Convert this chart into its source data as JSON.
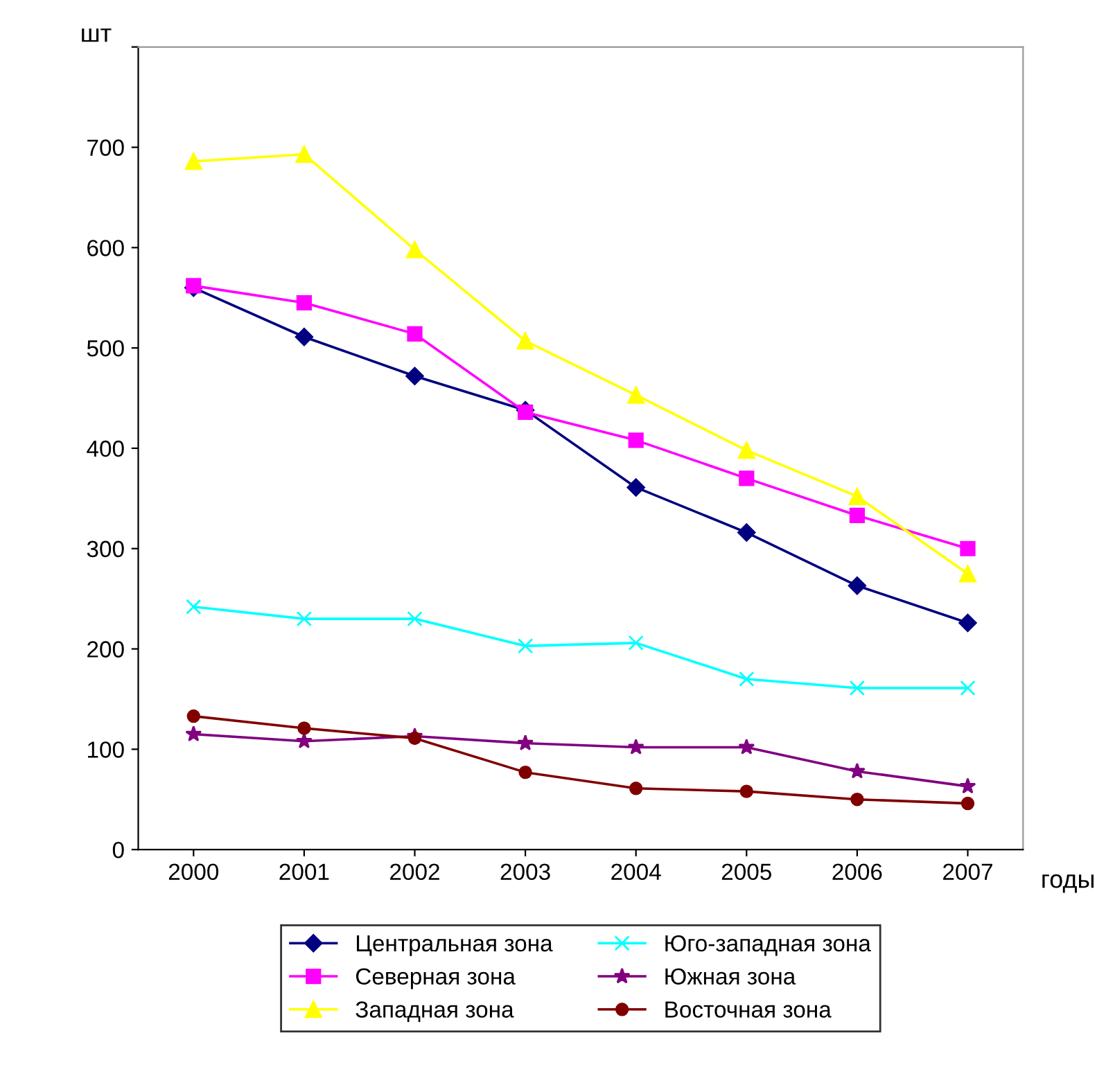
{
  "chart_data": {
    "type": "line",
    "ylabel": "шт",
    "xlabel": "годы",
    "categories": [
      "2000",
      "2001",
      "2002",
      "2003",
      "2004",
      "2005",
      "2006",
      "2007"
    ],
    "ylim": [
      0,
      800
    ],
    "yticks": [
      0,
      100,
      200,
      300,
      400,
      500,
      600,
      700,
      {
        "value": 800,
        "label": null
      }
    ],
    "grid": false,
    "legend": "bottom",
    "series": [
      {
        "name": "Центральная зона",
        "color": "#000080",
        "marker": "diamond",
        "values": [
          560,
          511,
          472,
          438,
          361,
          316,
          263,
          226
        ]
      },
      {
        "name": "Северная зона",
        "color": "#ff00ff",
        "marker": "square",
        "values": [
          562,
          545,
          514,
          436,
          408,
          370,
          333,
          300
        ]
      },
      {
        "name": "Западная зона",
        "color": "#ffff00",
        "marker": "triangle",
        "values": [
          686,
          693,
          598,
          507,
          453,
          398,
          352,
          275
        ]
      },
      {
        "name": "Юго-западная зона",
        "color": "#00ffff",
        "marker": "cross",
        "values": [
          242,
          230,
          230,
          203,
          206,
          170,
          161,
          161
        ]
      },
      {
        "name": "Южная зона",
        "color": "#800080",
        "marker": "star",
        "values": [
          115,
          108,
          113,
          106,
          102,
          102,
          78,
          63
        ]
      },
      {
        "name": "Восточная зона",
        "color": "#800000",
        "marker": "circle",
        "values": [
          133,
          121,
          111,
          77,
          61,
          58,
          50,
          46
        ]
      }
    ]
  }
}
